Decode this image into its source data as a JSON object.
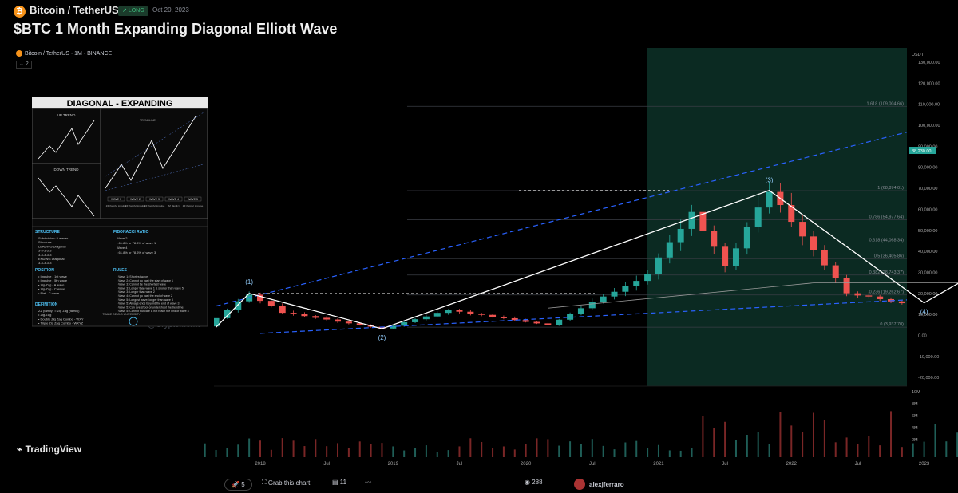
{
  "header": {
    "pair": "Bitcoin / TetherUS",
    "badge": "LONG",
    "date": "Oct 20, 2023",
    "title": "$BTC 1 Month Expanding Diagonal Elliott Wave"
  },
  "chart_header": {
    "symbol": "Bitcoin / TetherUS · 1M · BINANCE",
    "collapse": "2"
  },
  "watermark": "@CryptoMento",
  "logo": "TradingView",
  "footer": {
    "boosts": "5",
    "grab": "Grab this chart",
    "comments": "11",
    "more": "◦◦◦",
    "views": "288",
    "author": "alexjferraro"
  },
  "colors": {
    "up": "#26a69a",
    "down": "#ef5350",
    "channel": "#2962ff",
    "wave": "#ffffff",
    "highlight": "#0b2a22",
    "label": "#90caf9"
  },
  "chart_data": {
    "type": "candlestick",
    "y_axis_unit": "USDT",
    "y_ticks": [
      -20000,
      -10000,
      0,
      10000,
      20000,
      30000,
      40000,
      50000,
      60000,
      70000,
      80000,
      90000,
      100000,
      110000,
      120000,
      130000
    ],
    "y_tick_labels": [
      "-20,000.00",
      "-10,000.00",
      "0.00",
      "10,000.00",
      "20,000.00",
      "30,000.00",
      "40,000.00",
      "50,000.00",
      "60,000.00",
      "70,000.00",
      "80,000.00",
      "90,000.00",
      "100,000.00",
      "110,000.00",
      "120,000.00",
      "130,000.00"
    ],
    "x_tick_labels": [
      "2018",
      "Jul",
      "2019",
      "Jul",
      "2020",
      "Jul",
      "2021",
      "Jul",
      "2022",
      "Jul",
      "2023",
      "Jul",
      "2024",
      "Jul",
      "2025",
      "Jul",
      "2026"
    ],
    "last_price": "88,230.00",
    "volume_ticks": [
      "10M",
      "8M",
      "6M",
      "4M",
      "2M"
    ],
    "fib_levels": [
      {
        "label": "1.618 (109,004.66)",
        "value": 109004.66
      },
      {
        "label": "1 (68,874.01)",
        "value": 68874.01
      },
      {
        "label": "0.786 (54,977.64)",
        "value": 54977.64
      },
      {
        "label": "0.618 (44,068.34)",
        "value": 44068.34
      },
      {
        "label": "0.5 (36,405.86)",
        "value": 36405.86
      },
      {
        "label": "0.382 (28,743.37)",
        "value": 28743.37
      },
      {
        "label": "0.236 (19,262.67)",
        "value": 19262.67
      },
      {
        "label": "0 (3,937.70)",
        "value": 3937.7
      }
    ],
    "waves": [
      {
        "label": "(1)",
        "value": 20000
      },
      {
        "label": "(2)",
        "value": 3200
      },
      {
        "label": "(3)",
        "value": 69000
      },
      {
        "label": "(4)",
        "value": 15500
      },
      {
        "label": "(5)",
        "value": 109000
      }
    ],
    "anchors": [
      [
        "2017-08",
        4300
      ],
      [
        "2017-12",
        19800
      ],
      [
        "2018-03",
        11000
      ],
      [
        "2018-12",
        3200
      ],
      [
        "2019-06",
        12000
      ],
      [
        "2020-03",
        5000
      ],
      [
        "2020-12",
        29000
      ],
      [
        "2021-04",
        58000
      ],
      [
        "2021-07",
        33000
      ],
      [
        "2021-11",
        69000
      ],
      [
        "2022-06",
        20000
      ],
      [
        "2022-11",
        15500
      ],
      [
        "2023-06",
        28000
      ],
      [
        "2023-12",
        43000
      ],
      [
        "2024-03",
        71000
      ],
      [
        "2024-07",
        60000
      ],
      [
        "2024-12",
        99000
      ],
      [
        "2025-01",
        106000
      ],
      [
        "2025-04",
        82000
      ],
      [
        "2025-08",
        113000
      ],
      [
        "2025-10",
        112000
      ],
      [
        "2025-11",
        88230
      ]
    ]
  },
  "inset": {
    "title": "DIAGONAL - EXPANDING",
    "uptrend": "UP TREND",
    "downtrend": "DOWN TREND",
    "trendline": "TRENDLINE",
    "wave_heads": [
      "WAVE 1",
      "WAVE 2",
      "WAVE 3",
      "WAVE 4",
      "WAVE 5"
    ],
    "wave_types": [
      "ZZ (family) impulse",
      "ZZ (family) impulse",
      "ZZ (family) impulse",
      "ZZ (family)",
      "ZZ (family) impulse"
    ],
    "structure_title": "STRUCTURE",
    "structure": [
      "Subdivision: 5 waves",
      "Structure:",
      "LEADING Diagonal",
      "3-3-3-3-3",
      "3-3-3-3-3",
      "ENDING Diagonal",
      "3-3-3-3-3"
    ],
    "fib_title": "FIBONACCI RATIO",
    "fib_lines": [
      "Wave 2",
      "• 61.8% or 78.6% of wave 1",
      "Wave 4",
      "• 61.8% or 78.6% of wave 3"
    ],
    "position_title": "POSITION",
    "position": [
      "• Impulse - 1st wave",
      "• Impulse - 5th wave",
      "• Zig-Zag - A wave",
      "• Zig-Zag - C wave",
      "• Flat - C wave"
    ],
    "rules_title": "RULES",
    "rules": [
      "• Wave 1: Shortest wave",
      "• Wave 2: Cannot go past the start of wave 1",
      "• Wave 3: Cannot be the shortest wave",
      "• Wave 3: Longer than wave 1 & shorter than wave 5",
      "• Wave 3: Longer than wave 2",
      "• Wave 4: Cannot go past the end of wave 2",
      "• Wave 5: Longest wave; longer than wave 3",
      "• Wave 5: Always ends beyond the end of wave 3",
      "• Wave 5: Can overshoot or undershoot the trendline",
      "• Wave 5: Cannot truncate & not reach the end of wave 3"
    ],
    "definition_title": "DEFINITION",
    "definition": [
      "ZZ (family) = Zig Zag (family)",
      "• Zig-Zag",
      "• Double Zig Zag Combo - WXY",
      "• Triple Zig Zag Combo - WXYZ"
    ],
    "university": "TRADE DEVILS UNIVERSITY"
  }
}
